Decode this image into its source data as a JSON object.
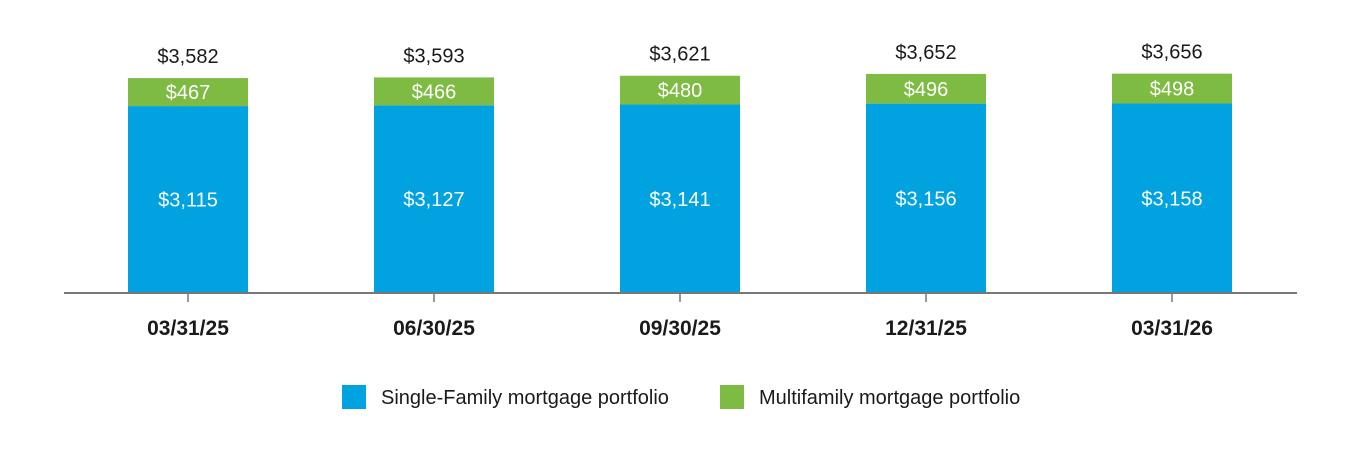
{
  "chart_data": {
    "type": "bar",
    "stacked": true,
    "categories": [
      "03/31/25",
      "06/30/25",
      "09/30/25",
      "12/31/25",
      "03/31/26"
    ],
    "series": [
      {
        "name": "Single-Family mortgage portfolio",
        "color": "#00A3E0",
        "values": [
          3115,
          3127,
          3141,
          3156,
          3158
        ],
        "labels": [
          "$3,115",
          "$3,127",
          "$3,141",
          "$3,156",
          "$3,158"
        ]
      },
      {
        "name": "Multifamily mortgage portfolio",
        "color": "#7DBB42",
        "values": [
          467,
          466,
          480,
          496,
          498
        ],
        "labels": [
          "$467",
          "$466",
          "$480",
          "$496",
          "$498"
        ]
      }
    ],
    "totals": [
      3582,
      3593,
      3621,
      3652,
      3656
    ],
    "total_labels": [
      "$3,582",
      "$3,593",
      "$3,621",
      "$3,652",
      "$3,656"
    ],
    "legend_position": "bottom",
    "grid": false
  }
}
